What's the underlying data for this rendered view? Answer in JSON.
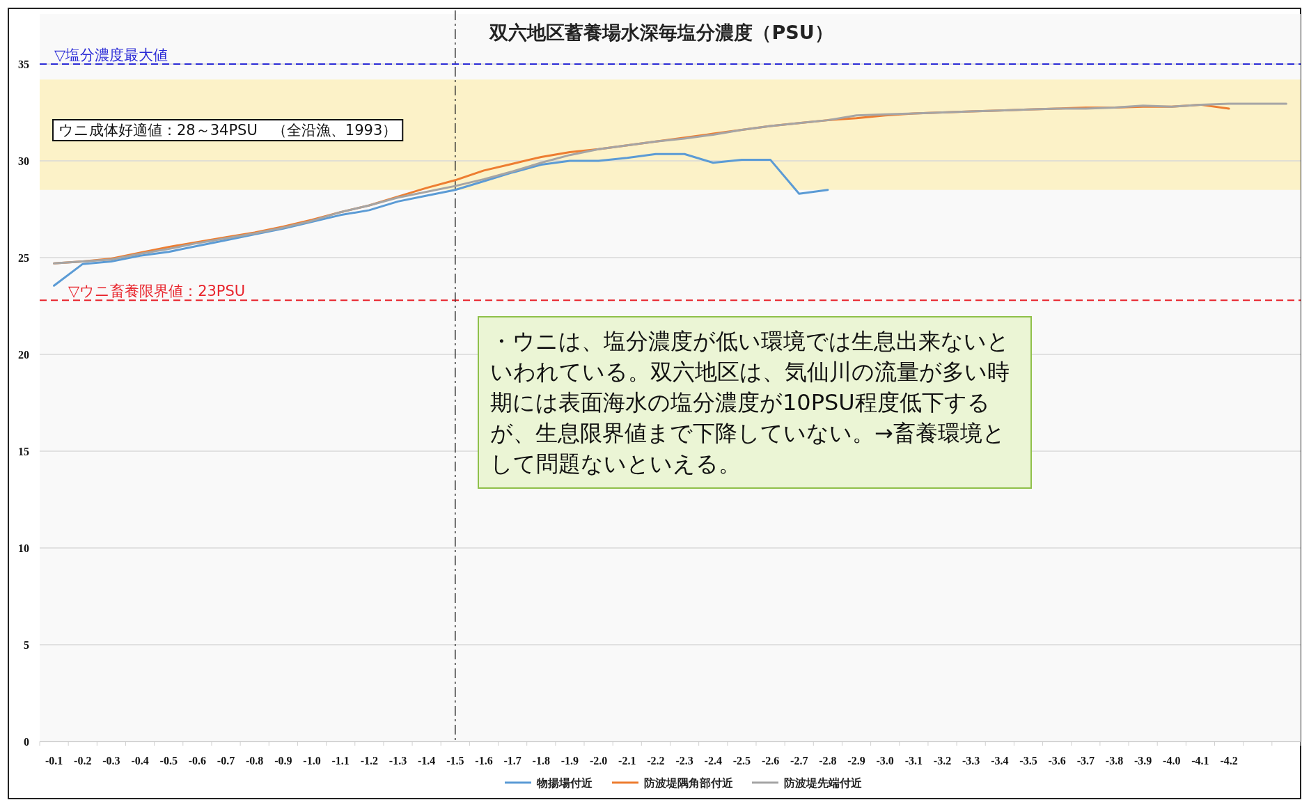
{
  "chart_data": {
    "type": "line",
    "title": "双六地区蓄養場水深毎塩分濃度（PSU）",
    "categories": [
      "-0.1",
      "-0.2",
      "-0.3",
      "-0.4",
      "-0.5",
      "-0.6",
      "-0.7",
      "-0.8",
      "-0.9",
      "-1.0",
      "-1.1",
      "-1.2",
      "-1.3",
      "-1.4",
      "-1.5",
      "-1.6",
      "-1.7",
      "-1.8",
      "-1.9",
      "-2.0",
      "-2.1",
      "-2.2",
      "-2.3",
      "-2.4",
      "-2.5",
      "-2.6",
      "-2.7",
      "-2.8",
      "-2.9",
      "-3.0",
      "-3.1",
      "-3.2",
      "-3.3",
      "-3.4",
      "-3.5",
      "-3.6",
      "-3.7",
      "-3.8",
      "-3.9",
      "-4.0",
      "-4.1",
      "-4.2",
      null,
      null
    ],
    "series": [
      {
        "name": "物揚場付近",
        "color": "#5b9bd5",
        "values": [
          23.55,
          24.67,
          24.8,
          25.1,
          25.3,
          25.6,
          25.9,
          26.2,
          26.5,
          26.85,
          27.2,
          27.45,
          27.9,
          28.2,
          28.5,
          28.95,
          29.4,
          29.8,
          30.0,
          30.0,
          30.15,
          30.35,
          30.35,
          29.9,
          30.05,
          30.05,
          28.3,
          28.5,
          null,
          null,
          null,
          null,
          null,
          null,
          null,
          null,
          null,
          null,
          null,
          null,
          null,
          null,
          null,
          null
        ]
      },
      {
        "name": "防波堤隅角部付近",
        "color": "#ed7d31",
        "values": [
          24.7,
          24.8,
          24.95,
          25.25,
          25.55,
          25.8,
          26.05,
          26.3,
          26.6,
          26.95,
          27.35,
          27.7,
          28.15,
          28.6,
          29.0,
          29.5,
          29.85,
          30.2,
          30.45,
          30.6,
          30.8,
          31.0,
          31.2,
          31.4,
          31.6,
          31.8,
          31.95,
          32.1,
          32.2,
          32.35,
          32.45,
          32.5,
          32.55,
          32.6,
          32.65,
          32.7,
          32.75,
          32.75,
          32.8,
          32.8,
          32.9,
          32.7,
          null,
          null
        ]
      },
      {
        "name": "防波堤先端付近",
        "color": "#a5a5a5",
        "values": [
          24.7,
          24.8,
          24.9,
          25.2,
          25.45,
          25.75,
          26.0,
          26.25,
          26.55,
          26.9,
          27.35,
          27.7,
          28.1,
          28.4,
          28.7,
          29.05,
          29.45,
          29.9,
          30.3,
          30.6,
          30.8,
          31.0,
          31.15,
          31.35,
          31.6,
          31.8,
          31.95,
          32.1,
          32.35,
          32.4,
          32.45,
          32.5,
          32.55,
          32.6,
          32.65,
          32.7,
          32.7,
          32.75,
          32.85,
          32.8,
          32.9,
          32.95,
          32.95,
          32.95
        ]
      }
    ],
    "ylim": [
      0,
      35
    ],
    "yticks": [
      0,
      5,
      10,
      15,
      20,
      25,
      30,
      35
    ],
    "grid": "y",
    "legend": "bottom",
    "marker": "none",
    "line_style": "solid",
    "ref_lines": [
      {
        "axis": "y",
        "value": 35,
        "label": "▽塩分濃度最大値",
        "color": "#2b2bd6",
        "line_style": "dashed"
      },
      {
        "axis": "y",
        "value": 22.8,
        "label": "▽ウニ畜養限界値：23PSU",
        "color": "#e8242c",
        "line_style": "dashed"
      },
      {
        "axis": "x",
        "value": "-1.5",
        "color": "#333333",
        "line_style": "dashdot"
      }
    ],
    "bands": [
      {
        "axis": "y",
        "from": 28.5,
        "to": 34.2,
        "label": "ウニ成体好適値：28～34PSU　（全沿漁、1993）",
        "color": "#fcf2c8"
      }
    ],
    "annotations": [
      "・ウニは、塩分濃度が低い環境では生息出来ないといわれている。双六地区は、気仙川の流量が多い時期には表面海水の塩分濃度が10PSU程度低下するが、生息限界値まで下降していない。→畜養環境として問題ないといえる。"
    ]
  }
}
